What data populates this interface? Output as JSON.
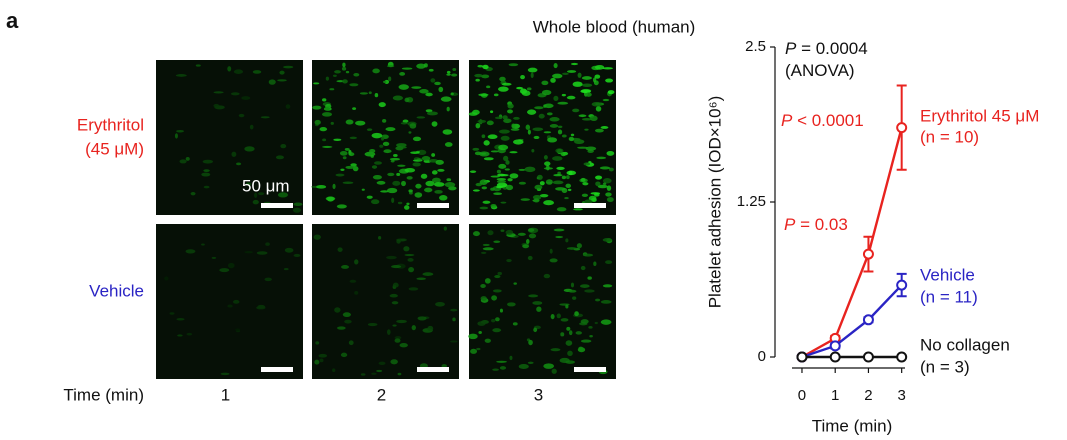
{
  "panel_label": "a",
  "images": {
    "title": "Whole blood (human)",
    "rows": [
      {
        "label": [
          "Erythritol",
          "(45 μM)"
        ],
        "color": "#e8231f"
      },
      {
        "label": [
          "Vehicle"
        ],
        "color": "#2a24c4"
      }
    ],
    "columns": [
      "1",
      "2",
      "3"
    ],
    "column_axis": "Time (min)",
    "scale_bar": "50 μm"
  },
  "chart_data": {
    "type": "line",
    "xlabel": "Time (min)",
    "ylabel": "Platelet adhesion (IOD×10⁶)",
    "x": [
      0,
      1,
      2,
      3
    ],
    "xlim": [
      -0.3,
      3.1
    ],
    "xticks": [
      0,
      1,
      2,
      3
    ],
    "ylim": [
      0,
      2.5
    ],
    "yticks": [
      0,
      1.25,
      2.5
    ],
    "series": [
      {
        "name": "Erythritol 45 μM",
        "note": "(n = 10)",
        "color": "#e8231f",
        "values": [
          0,
          0.15,
          0.83,
          1.85
        ],
        "errors": [
          null,
          0.02,
          0.14,
          0.34
        ]
      },
      {
        "name": "Vehicle",
        "note": "(n = 11)",
        "color": "#2a24c4",
        "values": [
          0,
          0.09,
          0.3,
          0.58
        ],
        "errors": [
          null,
          0.02,
          0.02,
          0.09
        ]
      },
      {
        "name": "No collagen",
        "note": "(n = 3)",
        "color": "#111111",
        "values": [
          0,
          0,
          0,
          0
        ],
        "errors": [
          null,
          null,
          null,
          null
        ]
      }
    ],
    "annotations": [
      {
        "italic": "P",
        "text": " = 0.0004",
        "color": "#111111"
      },
      {
        "text": "(ANOVA)",
        "color": "#111111"
      },
      {
        "italic": "P",
        "text": " < 0.0001",
        "color": "#e8231f"
      },
      {
        "italic": "P",
        "text": " = 0.03",
        "color": "#e8231f"
      }
    ]
  }
}
